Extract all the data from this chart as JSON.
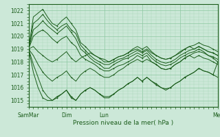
{
  "bg_color": "#cce8d8",
  "line_color": "#1a5c1a",
  "grid_color_major": "#8cc8a0",
  "grid_color_minor": "#aad8b8",
  "ylabel_values": [
    1015,
    1016,
    1017,
    1018,
    1019,
    1020,
    1021,
    1022
  ],
  "ylim": [
    1014.5,
    1022.5
  ],
  "xlabel": "Pression niveau de la mer( hPa )",
  "x_ticks": [
    0,
    48,
    96,
    144,
    240
  ],
  "x_tick_labels": [
    "SamMar",
    "Dim",
    "Lun",
    "",
    "Mer"
  ],
  "total_hours": 240,
  "series": [
    [
      1019.0,
      1021.5,
      1021.8,
      1022.1,
      1021.5,
      1021.0,
      1020.8,
      1021.2,
      1021.5,
      1021.0,
      1020.5,
      1019.5,
      1019.2,
      1018.8,
      1018.5,
      1018.3,
      1018.2,
      1018.0,
      1018.2,
      1018.4,
      1018.5,
      1018.7,
      1019.0,
      1019.2,
      1019.0,
      1019.2,
      1018.8,
      1018.5,
      1018.3,
      1018.2,
      1018.3,
      1018.5,
      1018.7,
      1019.0,
      1019.2,
      1019.3,
      1019.5,
      1019.3,
      1019.2,
      1019.0,
      1018.8
    ],
    [
      1019.0,
      1021.0,
      1021.3,
      1021.7,
      1021.2,
      1020.8,
      1020.5,
      1020.8,
      1021.0,
      1020.5,
      1020.2,
      1019.3,
      1018.9,
      1018.5,
      1018.2,
      1018.0,
      1017.8,
      1017.8,
      1018.0,
      1018.2,
      1018.3,
      1018.5,
      1018.7,
      1018.9,
      1018.7,
      1018.9,
      1018.5,
      1018.2,
      1018.0,
      1017.9,
      1018.0,
      1018.2,
      1018.5,
      1018.7,
      1018.9,
      1019.0,
      1019.2,
      1019.0,
      1018.8,
      1018.7,
      1018.5
    ],
    [
      1019.0,
      1020.5,
      1020.8,
      1021.2,
      1020.8,
      1020.5,
      1020.2,
      1020.5,
      1020.8,
      1020.3,
      1019.8,
      1019.0,
      1018.7,
      1018.3,
      1018.0,
      1017.8,
      1017.5,
      1017.5,
      1017.8,
      1018.0,
      1018.2,
      1018.3,
      1018.5,
      1018.7,
      1018.5,
      1018.7,
      1018.3,
      1018.0,
      1017.8,
      1017.7,
      1017.8,
      1018.0,
      1018.3,
      1018.5,
      1018.7,
      1018.8,
      1019.0,
      1018.8,
      1018.5,
      1018.4,
      1018.2
    ],
    [
      1019.0,
      1020.0,
      1020.3,
      1020.5,
      1020.2,
      1019.8,
      1019.5,
      1019.8,
      1020.0,
      1019.5,
      1019.2,
      1018.5,
      1018.2,
      1018.0,
      1017.8,
      1017.5,
      1017.3,
      1017.3,
      1017.5,
      1017.7,
      1017.8,
      1018.0,
      1018.2,
      1018.5,
      1018.3,
      1018.5,
      1018.0,
      1017.8,
      1017.5,
      1017.4,
      1017.5,
      1017.8,
      1018.0,
      1018.3,
      1018.5,
      1018.7,
      1018.8,
      1018.7,
      1018.5,
      1018.3,
      1018.0
    ],
    [
      1019.0,
      1019.2,
      1018.8,
      1018.5,
      1018.2,
      1018.0,
      1018.2,
      1018.5,
      1018.8,
      1018.3,
      1018.0,
      1018.3,
      1018.5,
      1018.7,
      1018.5,
      1018.3,
      1018.0,
      1018.0,
      1018.2,
      1018.4,
      1018.5,
      1018.7,
      1018.9,
      1019.0,
      1018.8,
      1019.0,
      1018.7,
      1018.5,
      1018.3,
      1018.2,
      1018.3,
      1018.5,
      1018.8,
      1019.0,
      1019.2,
      1019.0,
      1019.2,
      1019.0,
      1018.8,
      1018.7,
      1018.5
    ],
    [
      1019.0,
      1018.5,
      1017.8,
      1017.2,
      1016.8,
      1016.5,
      1016.8,
      1017.0,
      1017.3,
      1016.8,
      1016.5,
      1017.0,
      1017.3,
      1017.5,
      1017.3,
      1017.0,
      1016.8,
      1016.8,
      1017.0,
      1017.3,
      1017.5,
      1017.8,
      1018.0,
      1018.2,
      1018.0,
      1018.2,
      1018.0,
      1017.8,
      1017.5,
      1017.4,
      1017.5,
      1017.8,
      1018.0,
      1018.3,
      1018.5,
      1018.3,
      1018.5,
      1018.3,
      1018.2,
      1018.0,
      1017.8
    ],
    [
      1019.0,
      1017.8,
      1016.8,
      1015.8,
      1015.3,
      1015.0,
      1015.3,
      1015.5,
      1015.8,
      1015.3,
      1015.0,
      1015.5,
      1015.8,
      1016.0,
      1015.8,
      1015.5,
      1015.3,
      1015.3,
      1015.5,
      1015.8,
      1016.0,
      1016.3,
      1016.5,
      1016.8,
      1016.5,
      1016.8,
      1016.5,
      1016.3,
      1016.0,
      1015.9,
      1016.0,
      1016.3,
      1016.5,
      1016.8,
      1017.0,
      1017.2,
      1017.5,
      1017.3,
      1017.2,
      1017.0,
      1016.8
    ],
    [
      1019.0,
      1017.2,
      1016.0,
      1015.2,
      1015.0,
      1015.0,
      1015.2,
      1015.5,
      1015.8,
      1015.2,
      1015.0,
      1015.5,
      1015.8,
      1016.0,
      1015.8,
      1015.5,
      1015.2,
      1015.2,
      1015.5,
      1015.8,
      1016.0,
      1016.3,
      1016.5,
      1016.8,
      1016.5,
      1016.8,
      1016.5,
      1016.2,
      1016.0,
      1015.8,
      1016.0,
      1016.3,
      1016.5,
      1016.8,
      1017.0,
      1017.2,
      1017.5,
      1017.3,
      1017.2,
      1017.0,
      1018.0
    ]
  ]
}
